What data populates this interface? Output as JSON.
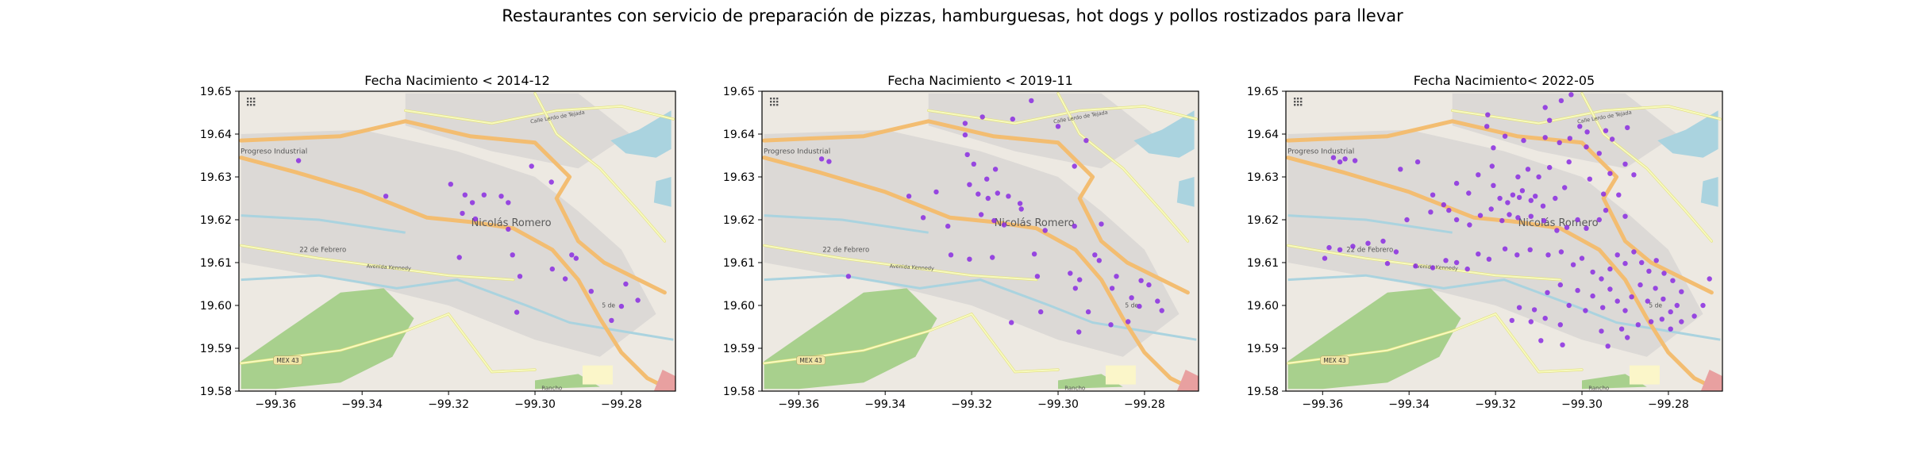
{
  "suptitle": "Restaurantes con servicio de preparación de pizzas, hamburguesas, hot dogs y pollos rostizados para llevar",
  "map_labels": {
    "town": "Nicolás Romero",
    "north_area": "Progreso Industrial",
    "west_area": "22 de Febrero",
    "avenue": "Avenida Kennedy",
    "road_north": "Calle Lerdo de Tejada",
    "highway_shield": "MEX 43",
    "south_area": "Rancho",
    "road_east": "5 de"
  },
  "colors": {
    "points": "#8a2be2",
    "map_background": "#ede9e2",
    "urban": "#d8d6d3",
    "park": "#a8d08d",
    "water": "#aad3df",
    "major_road": "#f3bd71",
    "secondary_road": "#f7fabf",
    "axis": "#000000"
  },
  "chart_data": [
    {
      "type": "scatter",
      "title": "Fecha Nacimiento < 2014-12",
      "xlim": [
        -99.3685,
        -99.2675
      ],
      "ylim": [
        19.58,
        19.65
      ],
      "xticks": [
        "−99.36",
        "−99.34",
        "−99.32",
        "−99.30",
        "−99.28"
      ],
      "xtick_values": [
        -99.36,
        -99.34,
        -99.32,
        -99.3,
        -99.28
      ],
      "yticks": [
        "19.58",
        "19.59",
        "19.60",
        "19.61",
        "19.62",
        "19.63",
        "19.64",
        "19.65"
      ],
      "ytick_values": [
        19.58,
        19.59,
        19.6,
        19.61,
        19.62,
        19.63,
        19.64,
        19.65
      ],
      "points": [
        [
          -99.3547,
          19.6338
        ],
        [
          -99.3345,
          19.6255
        ],
        [
          -99.3195,
          19.6283
        ],
        [
          -99.3162,
          19.6258
        ],
        [
          -99.3145,
          19.624
        ],
        [
          -99.3118,
          19.6258
        ],
        [
          -99.3078,
          19.6255
        ],
        [
          -99.3062,
          19.624
        ],
        [
          -99.3008,
          19.6325
        ],
        [
          -99.2962,
          19.6288
        ],
        [
          -99.3168,
          19.6215
        ],
        [
          -99.3138,
          19.6202
        ],
        [
          -99.3062,
          19.6178
        ],
        [
          -99.3052,
          19.6118
        ],
        [
          -99.3175,
          19.6112
        ],
        [
          -99.3035,
          19.6068
        ],
        [
          -99.2915,
          19.6118
        ],
        [
          -99.2905,
          19.611
        ],
        [
          -99.296,
          19.6085
        ],
        [
          -99.293,
          19.6062
        ],
        [
          -99.279,
          19.605
        ],
        [
          -99.28,
          19.5998
        ],
        [
          -99.287,
          19.6033
        ],
        [
          -99.3042,
          19.5984
        ],
        [
          -99.2823,
          19.5965
        ],
        [
          -99.2762,
          19.6012
        ]
      ]
    },
    {
      "type": "scatter",
      "title": "Fecha Nacimiento < 2019-11",
      "xlim": [
        -99.3685,
        -99.2675
      ],
      "ylim": [
        19.58,
        19.65
      ],
      "xticks": [
        "−99.36",
        "−99.34",
        "−99.32",
        "−99.30",
        "−99.28"
      ],
      "xtick_values": [
        -99.36,
        -99.34,
        -99.32,
        -99.3,
        -99.28
      ],
      "yticks": [
        "19.58",
        "19.59",
        "19.60",
        "19.61",
        "19.62",
        "19.63",
        "19.64",
        "19.65"
      ],
      "ytick_values": [
        19.58,
        19.59,
        19.6,
        19.61,
        19.62,
        19.63,
        19.64,
        19.65
      ],
      "points": [
        [
          -99.3547,
          19.6342
        ],
        [
          -99.353,
          19.6336
        ],
        [
          -99.3345,
          19.6255
        ],
        [
          -99.3282,
          19.6265
        ],
        [
          -99.3205,
          19.6282
        ],
        [
          -99.3185,
          19.626
        ],
        [
          -99.3162,
          19.625
        ],
        [
          -99.314,
          19.6262
        ],
        [
          -99.3115,
          19.6255
        ],
        [
          -99.3088,
          19.6238
        ],
        [
          -99.3165,
          19.6295
        ],
        [
          -99.3145,
          19.6318
        ],
        [
          -99.3195,
          19.633
        ],
        [
          -99.321,
          19.6352
        ],
        [
          -99.3215,
          19.6398
        ],
        [
          -99.3215,
          19.6425
        ],
        [
          -99.3175,
          19.644
        ],
        [
          -99.3105,
          19.6435
        ],
        [
          -99.3062,
          19.6478
        ],
        [
          -99.3,
          19.6418
        ],
        [
          -99.2935,
          19.6385
        ],
        [
          -99.2962,
          19.6325
        ],
        [
          -99.3178,
          19.6212
        ],
        [
          -99.3148,
          19.6198
        ],
        [
          -99.3125,
          19.6188
        ],
        [
          -99.3255,
          19.6185
        ],
        [
          -99.3312,
          19.6205
        ],
        [
          -99.3085,
          19.6225
        ],
        [
          -99.303,
          19.6175
        ],
        [
          -99.29,
          19.619
        ],
        [
          -99.2962,
          19.6185
        ],
        [
          -99.3055,
          19.612
        ],
        [
          -99.3152,
          19.6112
        ],
        [
          -99.3205,
          19.6108
        ],
        [
          -99.3248,
          19.6118
        ],
        [
          -99.3485,
          19.6068
        ],
        [
          -99.3048,
          19.6068
        ],
        [
          -99.2972,
          19.6075
        ],
        [
          -99.295,
          19.606
        ],
        [
          -99.2915,
          19.6118
        ],
        [
          -99.2905,
          19.6105
        ],
        [
          -99.296,
          19.604
        ],
        [
          -99.293,
          19.5985
        ],
        [
          -99.2875,
          19.604
        ],
        [
          -99.2838,
          19.5962
        ],
        [
          -99.2812,
          19.5998
        ],
        [
          -99.279,
          19.6048
        ],
        [
          -99.277,
          19.601
        ],
        [
          -99.276,
          19.5988
        ],
        [
          -99.283,
          19.6018
        ],
        [
          -99.2808,
          19.6058
        ],
        [
          -99.304,
          19.5985
        ],
        [
          -99.3108,
          19.596
        ],
        [
          -99.2878,
          19.5955
        ],
        [
          -99.2952,
          19.5938
        ],
        [
          -99.2865,
          19.6068
        ]
      ]
    },
    {
      "type": "scatter",
      "title": "Fecha Nacimiento< 2022-05",
      "xlim": [
        -99.3685,
        -99.2675
      ],
      "ylim": [
        19.58,
        19.65
      ],
      "xticks": [
        "−99.36",
        "−99.34",
        "−99.32",
        "−99.30",
        "−99.28"
      ],
      "xtick_values": [
        -99.36,
        -99.34,
        -99.32,
        -99.3,
        -99.28
      ],
      "yticks": [
        "19.58",
        "19.59",
        "19.60",
        "19.61",
        "19.62",
        "19.63",
        "19.64",
        "19.65"
      ],
      "ytick_values": [
        19.58,
        19.59,
        19.6,
        19.61,
        19.62,
        19.63,
        19.64,
        19.65
      ],
      "points": [
        [
          -99.3575,
          19.6345
        ],
        [
          -99.356,
          19.6335
        ],
        [
          -99.3548,
          19.6342
        ],
        [
          -99.3525,
          19.6338
        ],
        [
          -99.342,
          19.6318
        ],
        [
          -99.338,
          19.6335
        ],
        [
          -99.3345,
          19.6258
        ],
        [
          -99.332,
          19.6235
        ],
        [
          -99.329,
          19.6285
        ],
        [
          -99.3262,
          19.6262
        ],
        [
          -99.324,
          19.6305
        ],
        [
          -99.3208,
          19.6325
        ],
        [
          -99.3205,
          19.628
        ],
        [
          -99.319,
          19.625
        ],
        [
          -99.3172,
          19.624
        ],
        [
          -99.316,
          19.6258
        ],
        [
          -99.3145,
          19.6252
        ],
        [
          -99.3138,
          19.6268
        ],
        [
          -99.3118,
          19.6245
        ],
        [
          -99.3108,
          19.6255
        ],
        [
          -99.309,
          19.6232
        ],
        [
          -99.3062,
          19.625
        ],
        [
          -99.304,
          19.6275
        ],
        [
          -99.3148,
          19.63
        ],
        [
          -99.3125,
          19.6318
        ],
        [
          -99.31,
          19.63
        ],
        [
          -99.3075,
          19.6322
        ],
        [
          -99.303,
          19.6335
        ],
        [
          -99.2982,
          19.6295
        ],
        [
          -99.295,
          19.626
        ],
        [
          -99.2935,
          19.6308
        ],
        [
          -99.296,
          19.6355
        ],
        [
          -99.299,
          19.637
        ],
        [
          -99.3028,
          19.639
        ],
        [
          -99.3052,
          19.638
        ],
        [
          -99.3085,
          19.6392
        ],
        [
          -99.3135,
          19.6385
        ],
        [
          -99.3178,
          19.6395
        ],
        [
          -99.3205,
          19.6368
        ],
        [
          -99.322,
          19.6418
        ],
        [
          -99.3218,
          19.6445
        ],
        [
          -99.3075,
          19.6432
        ],
        [
          -99.3085,
          19.6462
        ],
        [
          -99.3048,
          19.6478
        ],
        [
          -99.3025,
          19.6492
        ],
        [
          -99.3005,
          19.6418
        ],
        [
          -99.2988,
          19.6405
        ],
        [
          -99.2945,
          19.6408
        ],
        [
          -99.293,
          19.6388
        ],
        [
          -99.2895,
          19.6415
        ],
        [
          -99.29,
          19.633
        ],
        [
          -99.288,
          19.6305
        ],
        [
          -99.2915,
          19.6258
        ],
        [
          -99.29,
          19.6208
        ],
        [
          -99.296,
          19.62
        ],
        [
          -99.2945,
          19.6222
        ],
        [
          -99.299,
          19.618
        ],
        [
          -99.301,
          19.62
        ],
        [
          -99.3035,
          19.6182
        ],
        [
          -99.3058,
          19.6175
        ],
        [
          -99.3088,
          19.6198
        ],
        [
          -99.3118,
          19.6208
        ],
        [
          -99.3148,
          19.6205
        ],
        [
          -99.3168,
          19.6212
        ],
        [
          -99.3185,
          19.6198
        ],
        [
          -99.321,
          19.6225
        ],
        [
          -99.3235,
          19.621
        ],
        [
          -99.326,
          19.6188
        ],
        [
          -99.329,
          19.62
        ],
        [
          -99.3308,
          19.6222
        ],
        [
          -99.335,
          19.6218
        ],
        [
          -99.3405,
          19.62
        ],
        [
          -99.346,
          19.615
        ],
        [
          -99.3495,
          19.6145
        ],
        [
          -99.353,
          19.6138
        ],
        [
          -99.356,
          19.613
        ],
        [
          -99.3585,
          19.6135
        ],
        [
          -99.3595,
          19.611
        ],
        [
          -99.345,
          19.6098
        ],
        [
          -99.343,
          19.6125
        ],
        [
          -99.3385,
          19.6092
        ],
        [
          -99.3345,
          19.6088
        ],
        [
          -99.3315,
          19.6105
        ],
        [
          -99.329,
          19.61
        ],
        [
          -99.3265,
          19.6085
        ],
        [
          -99.324,
          19.612
        ],
        [
          -99.3215,
          19.6108
        ],
        [
          -99.3178,
          19.6132
        ],
        [
          -99.315,
          19.6118
        ],
        [
          -99.312,
          19.613
        ],
        [
          -99.3078,
          19.6118
        ],
        [
          -99.3048,
          19.6125
        ],
        [
          -99.302,
          19.6095
        ],
        [
          -99.3,
          19.611
        ],
        [
          -99.2975,
          19.6078
        ],
        [
          -99.2955,
          19.6062
        ],
        [
          -99.2935,
          19.6085
        ],
        [
          -99.2918,
          19.6118
        ],
        [
          -99.29,
          19.6098
        ],
        [
          -99.288,
          19.6125
        ],
        [
          -99.2862,
          19.61
        ],
        [
          -99.2845,
          19.608
        ],
        [
          -99.2828,
          19.6105
        ],
        [
          -99.281,
          19.6075
        ],
        [
          -99.279,
          19.6058
        ],
        [
          -99.277,
          19.6032
        ],
        [
          -99.278,
          19.6
        ],
        [
          -99.2795,
          19.5985
        ],
        [
          -99.2812,
          19.6015
        ],
        [
          -99.283,
          19.604
        ],
        [
          -99.2848,
          19.601
        ],
        [
          -99.2865,
          19.6048
        ],
        [
          -99.2885,
          19.602
        ],
        [
          -99.29,
          19.5988
        ],
        [
          -99.2918,
          19.601
        ],
        [
          -99.2935,
          19.6038
        ],
        [
          -99.2952,
          19.5995
        ],
        [
          -99.2975,
          19.6022
        ],
        [
          -99.2992,
          19.5988
        ],
        [
          -99.301,
          19.6035
        ],
        [
          -99.303,
          19.6
        ],
        [
          -99.305,
          19.6048
        ],
        [
          -99.308,
          19.603
        ],
        [
          -99.311,
          19.599
        ],
        [
          -99.3145,
          19.5995
        ],
        [
          -99.3162,
          19.5965
        ],
        [
          -99.3118,
          19.5962
        ],
        [
          -99.3085,
          19.597
        ],
        [
          -99.305,
          19.5955
        ],
        [
          -99.2955,
          19.594
        ],
        [
          -99.2908,
          19.5945
        ],
        [
          -99.287,
          19.5955
        ],
        [
          -99.284,
          19.5962
        ],
        [
          -99.2815,
          19.5968
        ],
        [
          -99.2795,
          19.5945
        ],
        [
          -99.277,
          19.5962
        ],
        [
          -99.274,
          19.5975
        ],
        [
          -99.272,
          19.6
        ],
        [
          -99.2705,
          19.6062
        ],
        [
          -99.3095,
          19.5918
        ],
        [
          -99.3045,
          19.5908
        ],
        [
          -99.294,
          19.5905
        ],
        [
          -99.2895,
          19.5925
        ]
      ]
    }
  ]
}
